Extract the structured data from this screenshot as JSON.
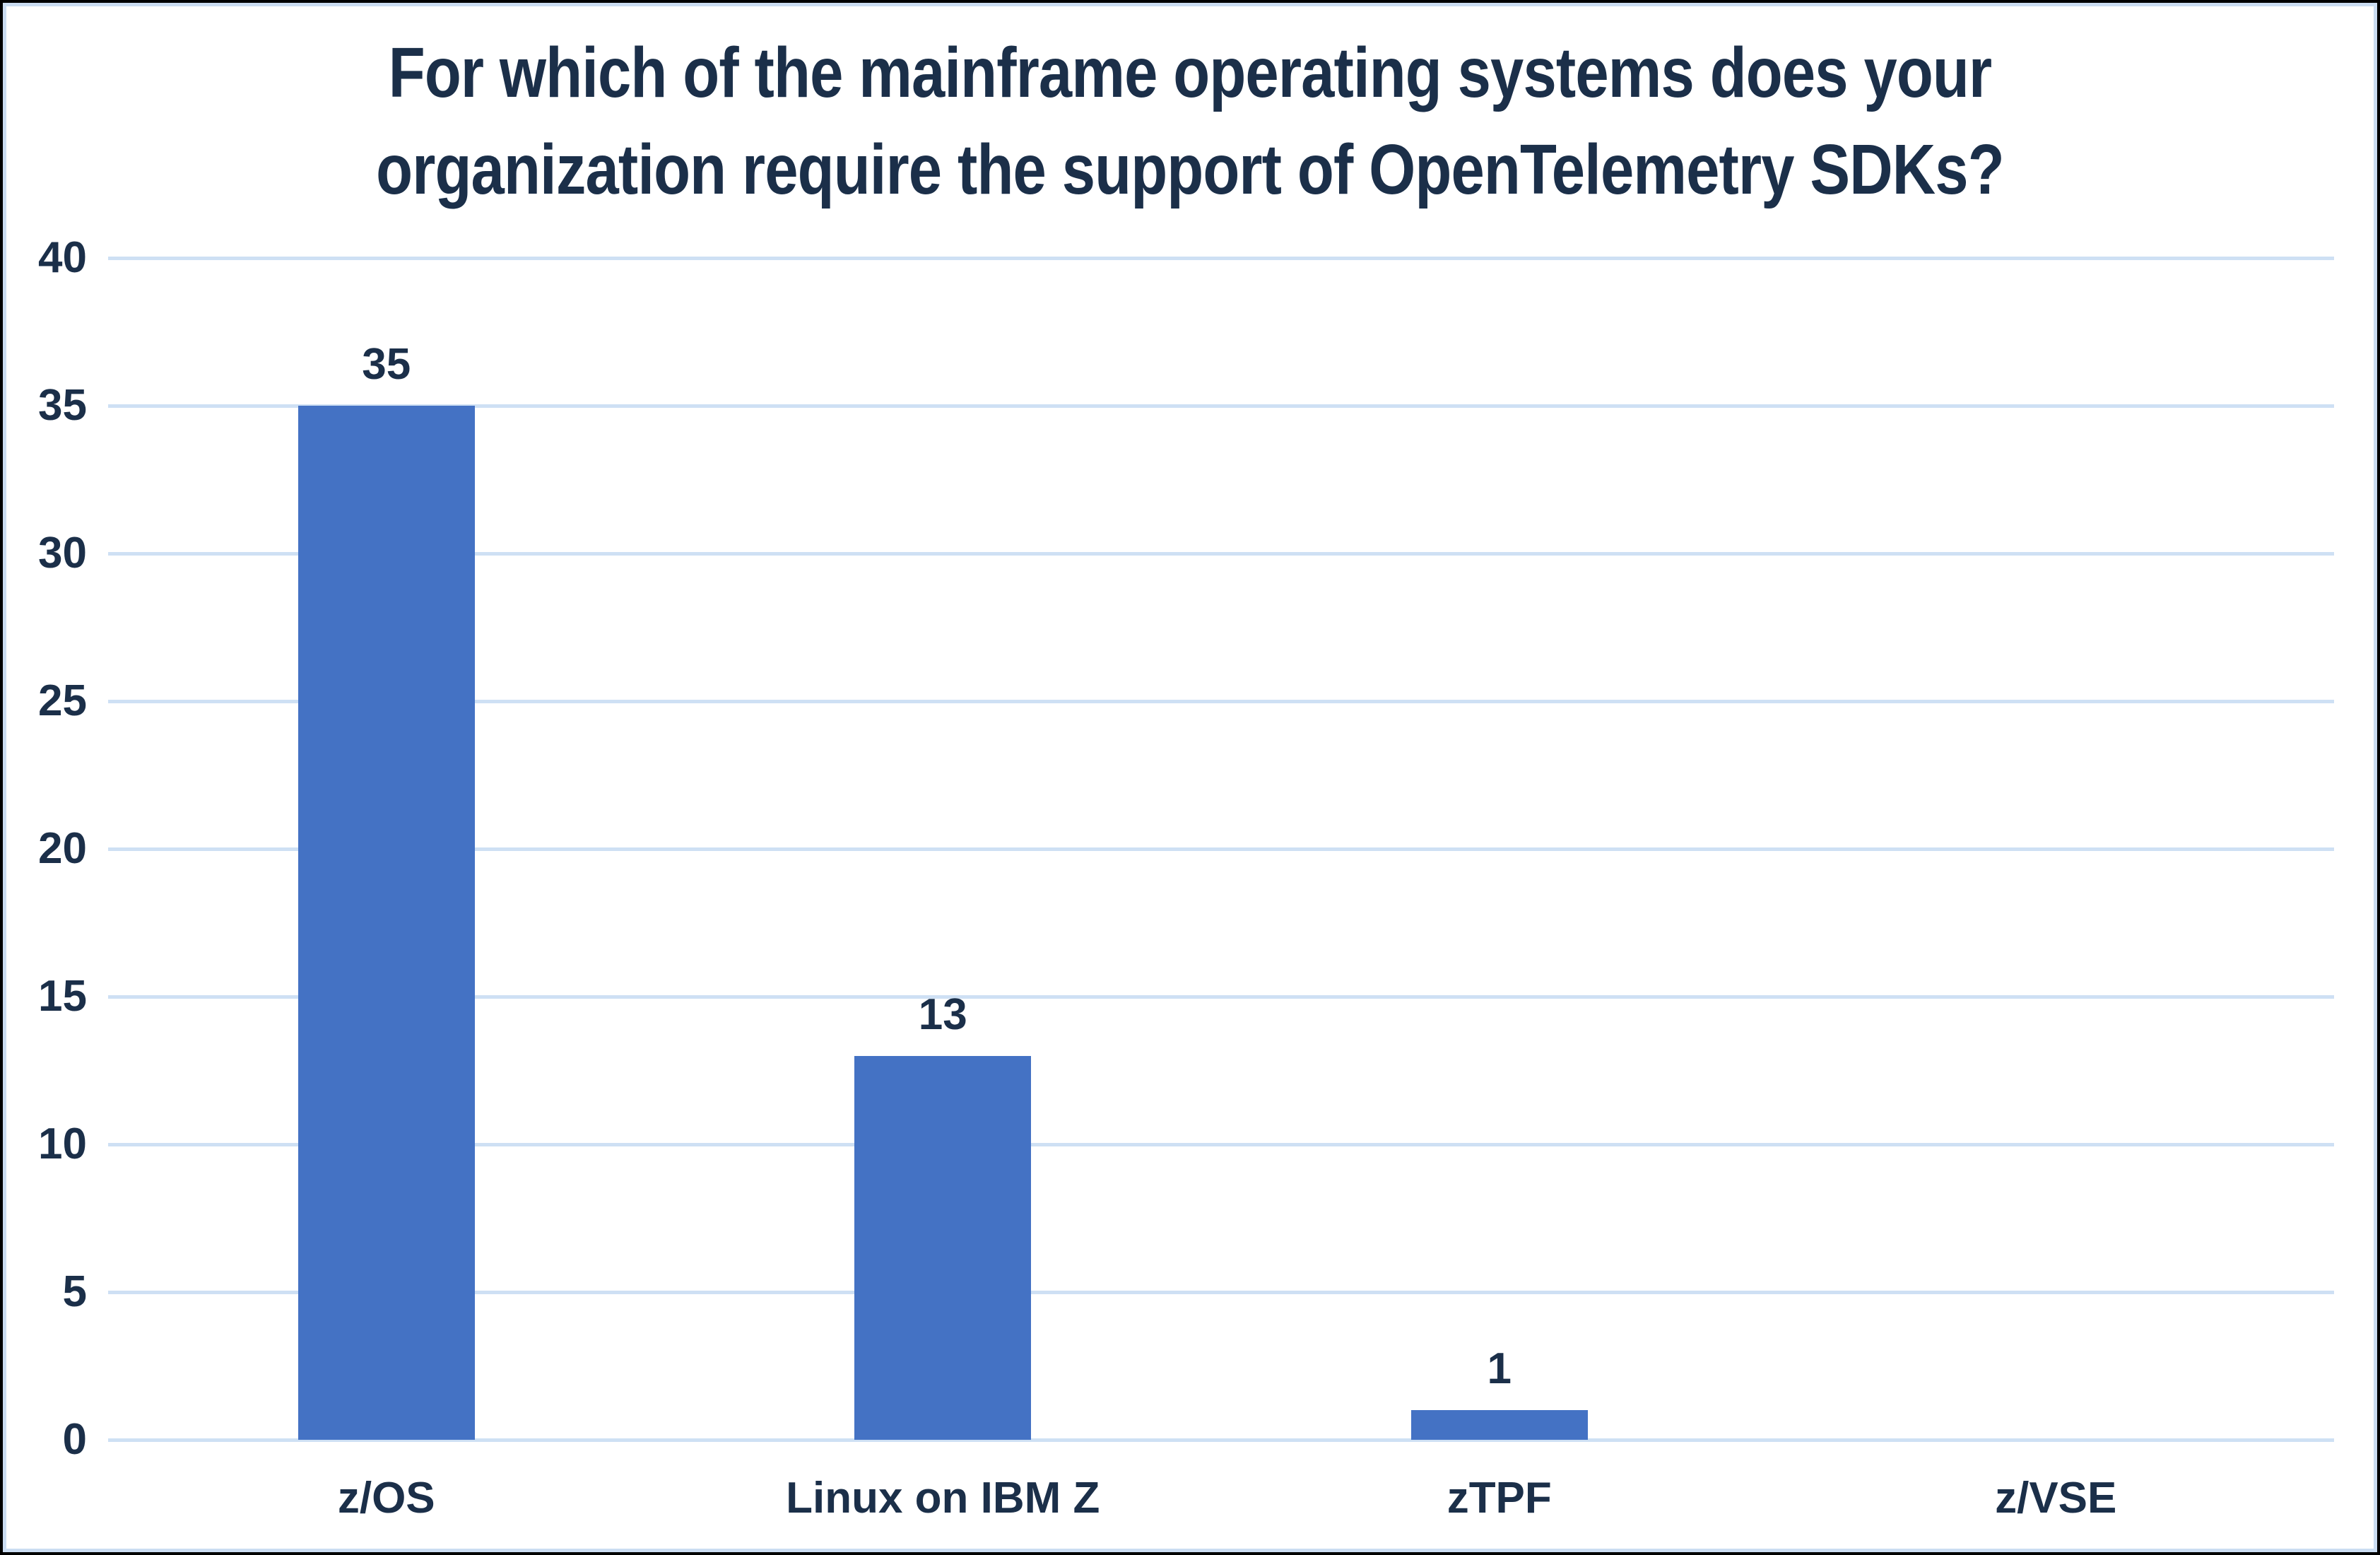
{
  "colors": {
    "text": "#1B2F49",
    "bar": "#4472C4",
    "gridline": "#CEE0F4",
    "frame_outer": "#000000",
    "frame_inner": "#CBDDF2",
    "background": "#FFFFFF"
  },
  "chart_data": {
    "type": "bar",
    "title": "For which of the mainframe operating systems does your organization require the support of OpenTelemetry SDKs?",
    "title_lines": [
      "For which of the mainframe operating systems does your",
      "organization require the support of OpenTelemetry SDKs?"
    ],
    "categories": [
      "z/OS",
      "Linux on IBM Z",
      "zTPF",
      "z/VSE"
    ],
    "values": [
      35,
      13,
      1,
      0
    ],
    "data_labels": [
      "35",
      "13",
      "1",
      ""
    ],
    "xlabel": "",
    "ylabel": "",
    "ylim": [
      0,
      40
    ],
    "yticks": [
      0,
      5,
      10,
      15,
      20,
      25,
      30,
      35,
      40
    ],
    "grid": true,
    "legend": false,
    "bar_color": "#4472C4"
  }
}
